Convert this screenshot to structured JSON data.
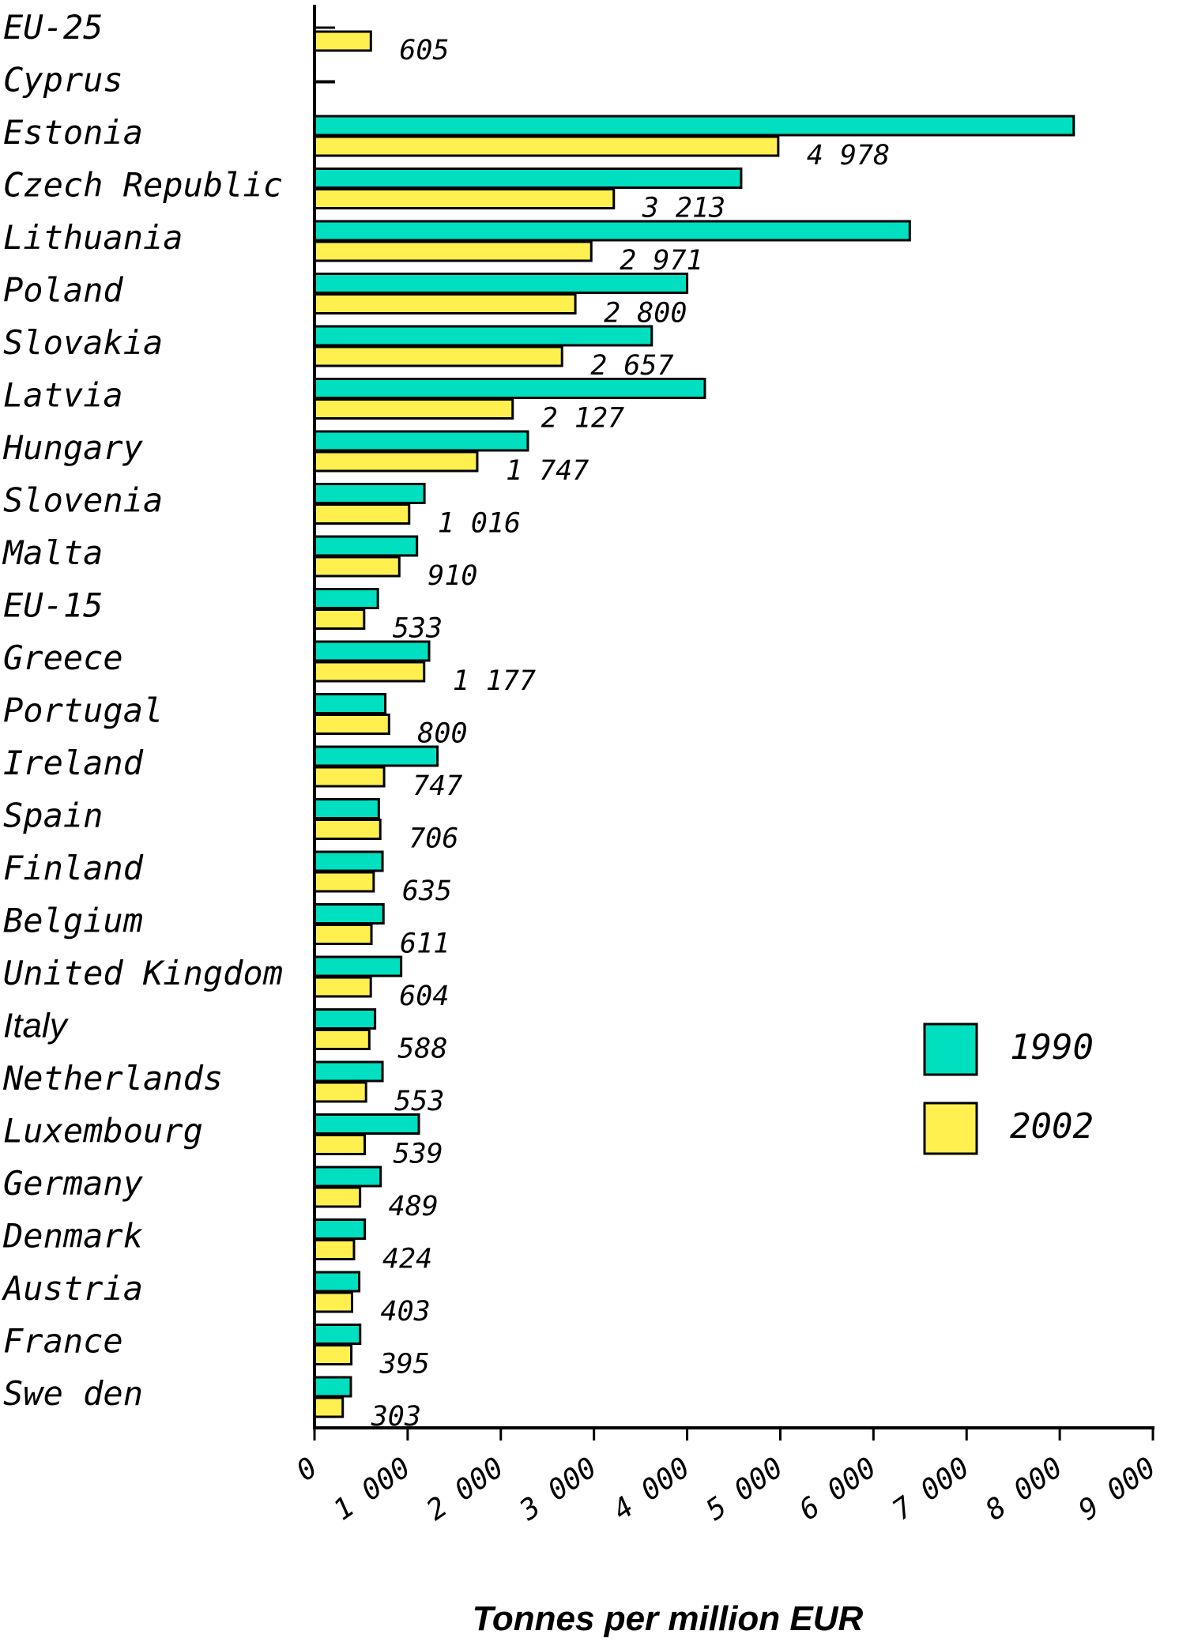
{
  "chart_data": {
    "type": "bar",
    "orientation": "horizontal",
    "categories": [
      "EU-25",
      "Cyprus",
      "Estonia",
      "Czech Republic",
      "Lithuania",
      "Poland",
      "Slovakia",
      "Latvia",
      "Hungary",
      "Slovenia",
      "Malta",
      "EU-15",
      "Greece",
      "Portugal",
      "Ireland",
      "Spain",
      "Finland",
      "Belgium",
      "United Kingdom",
      "Italy",
      "Netherlands",
      "Luxembourg",
      "Germany",
      "Denmark",
      "Austria",
      "France",
      "Swe den"
    ],
    "series": [
      {
        "name": "1990",
        "color": "#00e0c0",
        "values": [
          null,
          0,
          8150,
          4580,
          6390,
          4000,
          3620,
          4190,
          2290,
          1180,
          1100,
          680,
          1230,
          760,
          1320,
          690,
          730,
          740,
          930,
          650,
          730,
          1120,
          710,
          540,
          480,
          490,
          390
        ]
      },
      {
        "name": "2002",
        "color": "#fff050",
        "values": [
          605,
          null,
          4978,
          3213,
          2971,
          2800,
          2657,
          2127,
          1747,
          1016,
          910,
          533,
          1177,
          800,
          747,
          706,
          635,
          611,
          604,
          588,
          553,
          539,
          489,
          424,
          403,
          395,
          303
        ]
      }
    ],
    "value_labels": [
      "605",
      "",
      "4 978",
      "3 213",
      "2 971",
      "2 800",
      "2 657",
      "2 127",
      "1 747",
      "1 016",
      "910",
      "533",
      "1 177",
      "800",
      "747",
      "706",
      "635",
      "611",
      "604",
      "588",
      "553",
      "539",
      "489",
      "424",
      "403",
      "395",
      "303"
    ],
    "xlabel": "Tonnes per million EUR",
    "xlim": [
      0,
      9000
    ],
    "xticks": [
      0,
      1000,
      2000,
      3000,
      4000,
      5000,
      6000,
      7000,
      8000,
      9000
    ],
    "xtick_labels": [
      "0",
      "1 000",
      "2 000",
      "3 000",
      "4 000",
      "5 000",
      "6 000",
      "7 000",
      "8 000",
      "9 000"
    ],
    "legend": {
      "position": "right",
      "entries": [
        "1990",
        "2002"
      ]
    },
    "grid": false
  }
}
